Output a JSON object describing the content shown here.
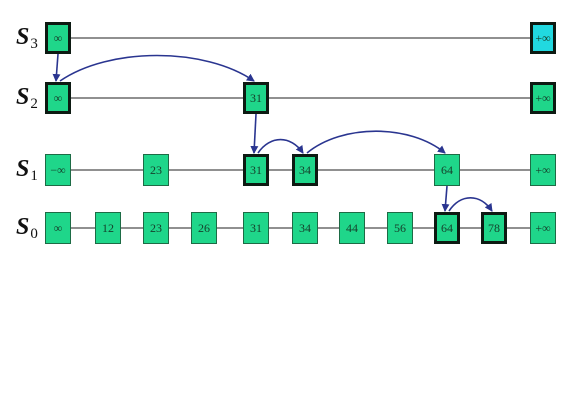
{
  "levels": [
    {
      "label": "S",
      "sub": "3",
      "nodes": [
        {
          "key": "∞",
          "col": 0,
          "bold": true
        },
        {
          "key": "+∞",
          "col": 10,
          "bold": true,
          "cyan": true
        }
      ]
    },
    {
      "label": "S",
      "sub": "2",
      "nodes": [
        {
          "key": "∞",
          "col": 0,
          "bold": true
        },
        {
          "key": "31",
          "col": 4,
          "bold": true
        },
        {
          "key": "+∞",
          "col": 10,
          "bold": true
        }
      ]
    },
    {
      "label": "S",
      "sub": "1",
      "nodes": [
        {
          "key": "−∞",
          "col": 0
        },
        {
          "key": "23",
          "col": 2
        },
        {
          "key": "31",
          "col": 4,
          "bold": true
        },
        {
          "key": "34",
          "col": 5,
          "bold": true
        },
        {
          "key": "64",
          "col": 8
        },
        {
          "key": "+∞",
          "col": 10
        }
      ]
    },
    {
      "label": "S",
      "sub": "0",
      "nodes": [
        {
          "key": "∞",
          "col": 0
        },
        {
          "key": "12",
          "col": 1
        },
        {
          "key": "23",
          "col": 2
        },
        {
          "key": "26",
          "col": 3
        },
        {
          "key": "31",
          "col": 4
        },
        {
          "key": "34",
          "col": 5
        },
        {
          "key": "44",
          "col": 6
        },
        {
          "key": "56",
          "col": 7
        },
        {
          "key": "64",
          "col": 8,
          "bold": true
        },
        {
          "key": "78",
          "col": 9,
          "bold": true
        },
        {
          "key": "+∞",
          "col": 10
        }
      ]
    }
  ],
  "search_path": [
    {
      "type": "down",
      "from_level": 0,
      "to_level": 1,
      "col": 0
    },
    {
      "type": "arc",
      "level": 1,
      "from_col": 0,
      "to_col": 4
    },
    {
      "type": "down",
      "from_level": 1,
      "to_level": 2,
      "col": 4
    },
    {
      "type": "arc",
      "level": 2,
      "from_col": 4,
      "to_col": 5
    },
    {
      "type": "arc",
      "level": 2,
      "from_col": 5,
      "to_col": 8
    },
    {
      "type": "down",
      "from_level": 2,
      "to_level": 3,
      "col": 8
    },
    {
      "type": "arc",
      "level": 3,
      "from_col": 8,
      "to_col": 9
    }
  ],
  "colors": {
    "node_fill": "#1fd68a",
    "node_fill_cyan": "#21d9e0",
    "node_border": "#1d6b45",
    "node_border_bold": "#0d1a12",
    "list_line": "#222222",
    "arrow": "#2a3590"
  }
}
